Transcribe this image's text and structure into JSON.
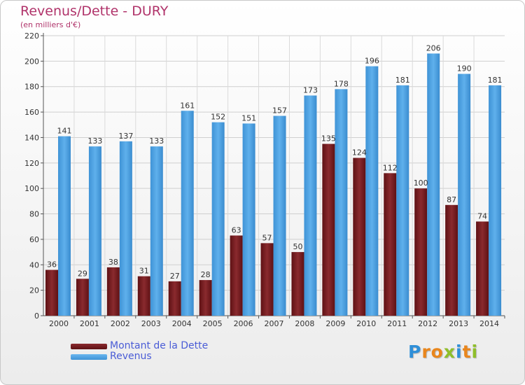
{
  "header": {
    "title": "Revenus/Dette - DURY",
    "subtitle": "(en milliers d'€)"
  },
  "colors": {
    "title": "#b0336a",
    "dette": "#7a1a1e",
    "revenus": "#4a9fe0",
    "legend_text": "#4a5cd6"
  },
  "chart_data": {
    "type": "bar",
    "title": "Revenus/Dette - DURY",
    "subtitle": "(en milliers d'€)",
    "categories": [
      "2000",
      "2001",
      "2002",
      "2003",
      "2004",
      "2005",
      "2006",
      "2007",
      "2008",
      "2009",
      "2010",
      "2011",
      "2012",
      "2013",
      "2014"
    ],
    "series": [
      {
        "name": "Montant de la Dette",
        "color": "#7a1a1e",
        "values": [
          36,
          29,
          38,
          31,
          27,
          28,
          63,
          57,
          50,
          135,
          124,
          112,
          100,
          87,
          74
        ]
      },
      {
        "name": "Revenus",
        "color": "#4a9fe0",
        "values": [
          141,
          133,
          137,
          133,
          161,
          152,
          151,
          157,
          173,
          178,
          196,
          181,
          206,
          190,
          181
        ]
      }
    ],
    "yticks": [
      0,
      20,
      40,
      60,
      80,
      100,
      120,
      140,
      160,
      180,
      200,
      220
    ],
    "ylim": [
      0,
      220
    ],
    "grid": true,
    "legend_position": "bottom-left"
  },
  "legend": {
    "items": [
      {
        "label": "Montant de la Dette"
      },
      {
        "label": "Revenus"
      }
    ]
  },
  "logo": {
    "letters": [
      {
        "ch": "P",
        "color": "#2f8fd8"
      },
      {
        "ch": "r",
        "color": "#e9861c"
      },
      {
        "ch": "o",
        "color": "#e9861c"
      },
      {
        "ch": "x",
        "color": "#8fbf2a"
      },
      {
        "ch": "i",
        "color": "#2f8fd8"
      },
      {
        "ch": "t",
        "color": "#e9861c"
      },
      {
        "ch": "i",
        "color": "#8fbf2a"
      }
    ]
  }
}
